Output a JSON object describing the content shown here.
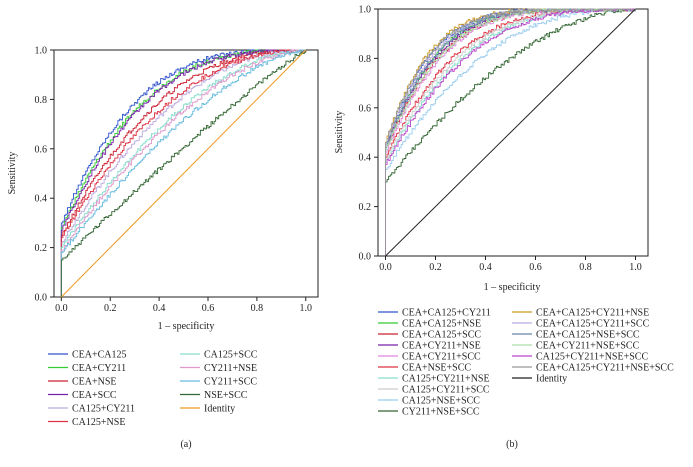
{
  "chart_data": [
    {
      "type": "line",
      "panel": "(a)",
      "xlabel": "1 – specificity",
      "ylabel": "Sensitivity",
      "xlim": [
        -0.03,
        1.05
      ],
      "ylim": [
        0,
        1.0
      ],
      "xticks": [
        "0.0",
        "0.2",
        "0.4",
        "0.6",
        "0.8",
        "1.0"
      ],
      "yticks": [
        "0.0",
        "0.2",
        "0.4",
        "0.6",
        "0.8",
        "1.0"
      ],
      "legend_columns": 2,
      "series": [
        {
          "name": "CEA+CA125",
          "color": "#3355cc",
          "k": 0.3,
          "y0": 0.3
        },
        {
          "name": "CEA+CY211",
          "color": "#33cc33",
          "k": 0.33,
          "y0": 0.28
        },
        {
          "name": "CEA+NSE",
          "color": "#cc2233",
          "k": 0.4,
          "y0": 0.25
        },
        {
          "name": "CEA+SCC",
          "color": "#7722aa",
          "k": 0.34,
          "y0": 0.27
        },
        {
          "name": "CA125+CY211",
          "color": "#bbaadd",
          "k": 0.48,
          "y0": 0.22
        },
        {
          "name": "CA125+NSE",
          "color": "#dd3344",
          "k": 0.45,
          "y0": 0.24
        },
        {
          "name": "CA125+SCC",
          "color": "#88ddcc",
          "k": 0.55,
          "y0": 0.2
        },
        {
          "name": "CY211+NSE",
          "color": "#dd99cc",
          "k": 0.58,
          "y0": 0.19
        },
        {
          "name": "CY211+SCC",
          "color": "#66bbdd",
          "k": 0.65,
          "y0": 0.18
        },
        {
          "name": "NSE+SCC",
          "color": "#336633",
          "k": 0.9,
          "y0": 0.15
        },
        {
          "name": "Identity",
          "color": "#ee9922",
          "identity": true
        }
      ]
    },
    {
      "type": "line",
      "panel": "(b)",
      "xlabel": "1 – specificity",
      "ylabel": "Sensitivity",
      "xlim": [
        -0.03,
        1.05
      ],
      "ylim": [
        0,
        1.0
      ],
      "xticks": [
        "0.0",
        "0.2",
        "0.4",
        "0.6",
        "0.8",
        "1.0"
      ],
      "yticks": [
        "0.0",
        "0.2",
        "0.4",
        "0.6",
        "0.8",
        "1.0"
      ],
      "legend_columns": 2,
      "series": [
        {
          "name": "CEA+CA125+CY211",
          "color": "#3355cc",
          "k": 0.18,
          "y0": 0.45
        },
        {
          "name": "CEA+CA125+NSE",
          "color": "#33cc33",
          "k": 0.2,
          "y0": 0.44
        },
        {
          "name": "CEA+CA125+SCC",
          "color": "#cc2233",
          "k": 0.22,
          "y0": 0.43
        },
        {
          "name": "CEA+CY211+NSE",
          "color": "#7722aa",
          "k": 0.21,
          "y0": 0.44
        },
        {
          "name": "CEA+CY211+SCC",
          "color": "#dd88dd",
          "k": 0.23,
          "y0": 0.42
        },
        {
          "name": "CEA+NSE+SCC",
          "color": "#dd3344",
          "k": 0.28,
          "y0": 0.4
        },
        {
          "name": "CA125+CY211+NSE",
          "color": "#88ddcc",
          "k": 0.32,
          "y0": 0.38
        },
        {
          "name": "CA125+CY211+SCC",
          "color": "#cccccc",
          "k": 0.3,
          "y0": 0.39
        },
        {
          "name": "CA125+NSE+SCC",
          "color": "#99ccee",
          "k": 0.4,
          "y0": 0.35
        },
        {
          "name": "CY211+NSE+SCC",
          "color": "#336633",
          "k": 0.55,
          "y0": 0.3
        },
        {
          "name": "CEA+CA125+CY211+NSE",
          "color": "#cc9922",
          "k": 0.17,
          "y0": 0.46
        },
        {
          "name": "CEA+CA125+CY211+SCC",
          "color": "#bbaadd",
          "k": 0.19,
          "y0": 0.45
        },
        {
          "name": "CEA+CA125+NSE+SCC",
          "color": "#6688aa",
          "k": 0.2,
          "y0": 0.44
        },
        {
          "name": "CEA+CY211+NSE+SCC",
          "color": "#aaddaa",
          "k": 0.22,
          "y0": 0.43
        },
        {
          "name": "CA125+CY211+NSE+SCC",
          "color": "#bb44cc",
          "k": 0.33,
          "y0": 0.37
        },
        {
          "name": "CEA+CA125+CY211+NSE+SCC",
          "color": "#999999",
          "k": 0.18,
          "y0": 0.46
        },
        {
          "name": "Identity",
          "color": "#222222",
          "identity": true
        }
      ]
    }
  ]
}
